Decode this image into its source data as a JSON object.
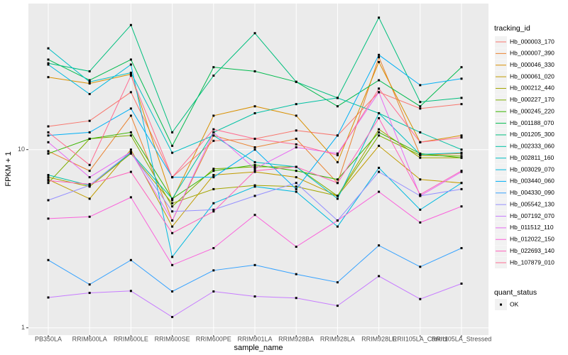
{
  "chart_data": {
    "type": "line",
    "log_scale": true,
    "grid": true,
    "xlabel": "sample_name",
    "ylabel": "FPKM + 1",
    "legend_title": "tracking_id",
    "point_color": "#000000",
    "shape_legend": {
      "title": "quant_status",
      "labels": [
        "OK"
      ]
    },
    "categories": [
      "PB350LA",
      "RRIM600LA",
      "RRIM600LE",
      "RRIM600SE",
      "RRIM600PE",
      "RRIM901LA",
      "RRIM928BA",
      "RRIM928LA",
      "RRIM928LE",
      "RRII105LA_Control",
      "RRII105LA_Stressed"
    ],
    "ylim": [
      0.91,
      66
    ],
    "yticks": [
      1,
      10
    ],
    "series": [
      {
        "name": "Hb_000003_170",
        "color": "#F8766D",
        "values": [
          13.5,
          14.5,
          21,
          7.0,
          11.2,
          11.5,
          12.8,
          12.0,
          21,
          17,
          18
        ]
      },
      {
        "name": "Hb_000007_390",
        "color": "#EA8331",
        "values": [
          9.8,
          7.6,
          15.5,
          4.0,
          12.0,
          10.3,
          11.5,
          6.5,
          33,
          9.3,
          9.5
        ]
      },
      {
        "name": "Hb_000046_330",
        "color": "#D89000",
        "values": [
          25.5,
          23.5,
          26.5,
          5.2,
          15.5,
          17.5,
          15.5,
          8.5,
          31,
          11,
          12
        ]
      },
      {
        "name": "Hb_000061_020",
        "color": "#C09B00",
        "values": [
          6.8,
          5.3,
          10,
          3.7,
          7.2,
          7.5,
          7.0,
          5.5,
          10.5,
          6.8,
          6.5
        ]
      },
      {
        "name": "Hb_000212_440",
        "color": "#A3A500",
        "values": [
          7.0,
          6.2,
          9.5,
          5.0,
          6.0,
          6.3,
          6.2,
          5.5,
          13.0,
          9.0,
          9.0
        ]
      },
      {
        "name": "Hb_000227_170",
        "color": "#7CAE00",
        "values": [
          6.5,
          11.5,
          12.0,
          4.8,
          7.8,
          8.0,
          8.0,
          5.5,
          12.0,
          9.3,
          9.2
        ]
      },
      {
        "name": "Hb_000245_220",
        "color": "#39B600",
        "values": [
          9.5,
          11.5,
          12.5,
          5.3,
          7.6,
          8.2,
          7.6,
          6.8,
          12.5,
          9.5,
          9.0
        ]
      },
      {
        "name": "Hb_001188_070",
        "color": "#00BB4E",
        "values": [
          32,
          24.5,
          32,
          10.5,
          29,
          27.5,
          24,
          17.5,
          24.5,
          17.5,
          29
        ]
      },
      {
        "name": "Hb_001205_300",
        "color": "#00BF7D",
        "values": [
          30.5,
          27.5,
          50,
          12.5,
          26,
          45,
          24,
          19.5,
          55,
          18.5,
          19.5
        ]
      },
      {
        "name": "Hb_002333_060",
        "color": "#00C1A3",
        "values": [
          7.2,
          6.3,
          9.6,
          5.3,
          12.5,
          16,
          18,
          19.5,
          16,
          12.5,
          10
        ]
      },
      {
        "name": "Hb_002811_160",
        "color": "#00BFC4",
        "values": [
          37,
          24,
          27,
          9.6,
          12,
          8.5,
          8,
          5.3,
          16,
          9.4,
          9.6
        ]
      },
      {
        "name": "Hb_003029_070",
        "color": "#00BAE0",
        "values": [
          30,
          20.5,
          30,
          2.5,
          5.0,
          6.2,
          5.8,
          3.7,
          7.9,
          4.6,
          6.5
        ]
      },
      {
        "name": "Hb_003440_060",
        "color": "#00B0F6",
        "values": [
          12,
          12.5,
          17,
          7.0,
          7.0,
          10,
          6.0,
          12,
          34,
          23,
          25
        ]
      },
      {
        "name": "Hb_004330_090",
        "color": "#35A2FF",
        "values": [
          2.4,
          1.75,
          2.4,
          1.6,
          2.1,
          2.25,
          2.0,
          1.8,
          2.9,
          2.2,
          2.8
        ]
      },
      {
        "name": "Hb_005542_130",
        "color": "#9590FF",
        "values": [
          5.2,
          6.3,
          9.7,
          4.5,
          4.6,
          5.5,
          6.5,
          4.0,
          7.5,
          5.5,
          6.0
        ]
      },
      {
        "name": "Hb_007192_070",
        "color": "#C77CFF",
        "values": [
          1.48,
          1.57,
          1.61,
          1.15,
          1.6,
          1.5,
          1.47,
          1.33,
          1.95,
          1.45,
          1.77
        ]
      },
      {
        "name": "Hb_011512_110",
        "color": "#E76BF3",
        "values": [
          11,
          7.0,
          9.7,
          4.0,
          12.5,
          7.8,
          10.3,
          9.5,
          21,
          5.5,
          7.5
        ]
      },
      {
        "name": "Hb_012022_150",
        "color": "#FA62DB",
        "values": [
          4.1,
          4.2,
          5.4,
          2.25,
          2.8,
          4.3,
          2.85,
          4.0,
          5.8,
          3.9,
          4.8
        ]
      },
      {
        "name": "Hb_022693_140",
        "color": "#FF62BC",
        "values": [
          6.7,
          6.4,
          7.5,
          3.4,
          4.5,
          7.6,
          8.0,
          6.5,
          15,
          5.6,
          7.6
        ]
      },
      {
        "name": "Hb_107879_010",
        "color": "#FF6C91",
        "values": [
          12.5,
          8.2,
          26,
          7.0,
          13,
          11.5,
          10.7,
          9.3,
          22,
          11,
          11.7
        ]
      }
    ]
  }
}
